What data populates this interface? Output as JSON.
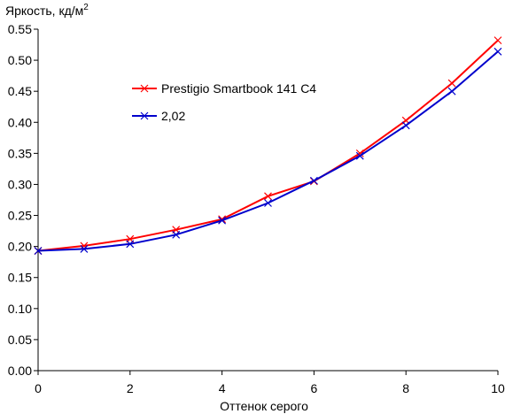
{
  "chart_data": {
    "type": "line",
    "ylabel": "Яркость, кд/м",
    "ylabel_sup": "2",
    "xlabel": "Оттенок серого",
    "xlim": [
      0,
      10
    ],
    "ylim": [
      0.0,
      0.55
    ],
    "xticks": [
      "0",
      "2",
      "4",
      "6",
      "8",
      "10"
    ],
    "yticks": [
      "0.00",
      "0.05",
      "0.10",
      "0.15",
      "0.20",
      "0.25",
      "0.30",
      "0.35",
      "0.40",
      "0.45",
      "0.50",
      "0.55"
    ],
    "grid": false,
    "legend_position": "upper-left",
    "x": [
      0,
      1,
      2,
      3,
      4,
      5,
      6,
      7,
      8,
      9,
      10
    ],
    "series": [
      {
        "name": "Prestigio Smartbook 141 C4",
        "color": "#ff0000",
        "marker": "x",
        "values": [
          0.193,
          0.201,
          0.212,
          0.227,
          0.244,
          0.281,
          0.305,
          0.35,
          0.403,
          0.463,
          0.532
        ]
      },
      {
        "name": "2,02",
        "color": "#0000cc",
        "marker": "x",
        "values": [
          0.193,
          0.196,
          0.204,
          0.219,
          0.242,
          0.27,
          0.306,
          0.346,
          0.395,
          0.45,
          0.514
        ]
      }
    ]
  }
}
